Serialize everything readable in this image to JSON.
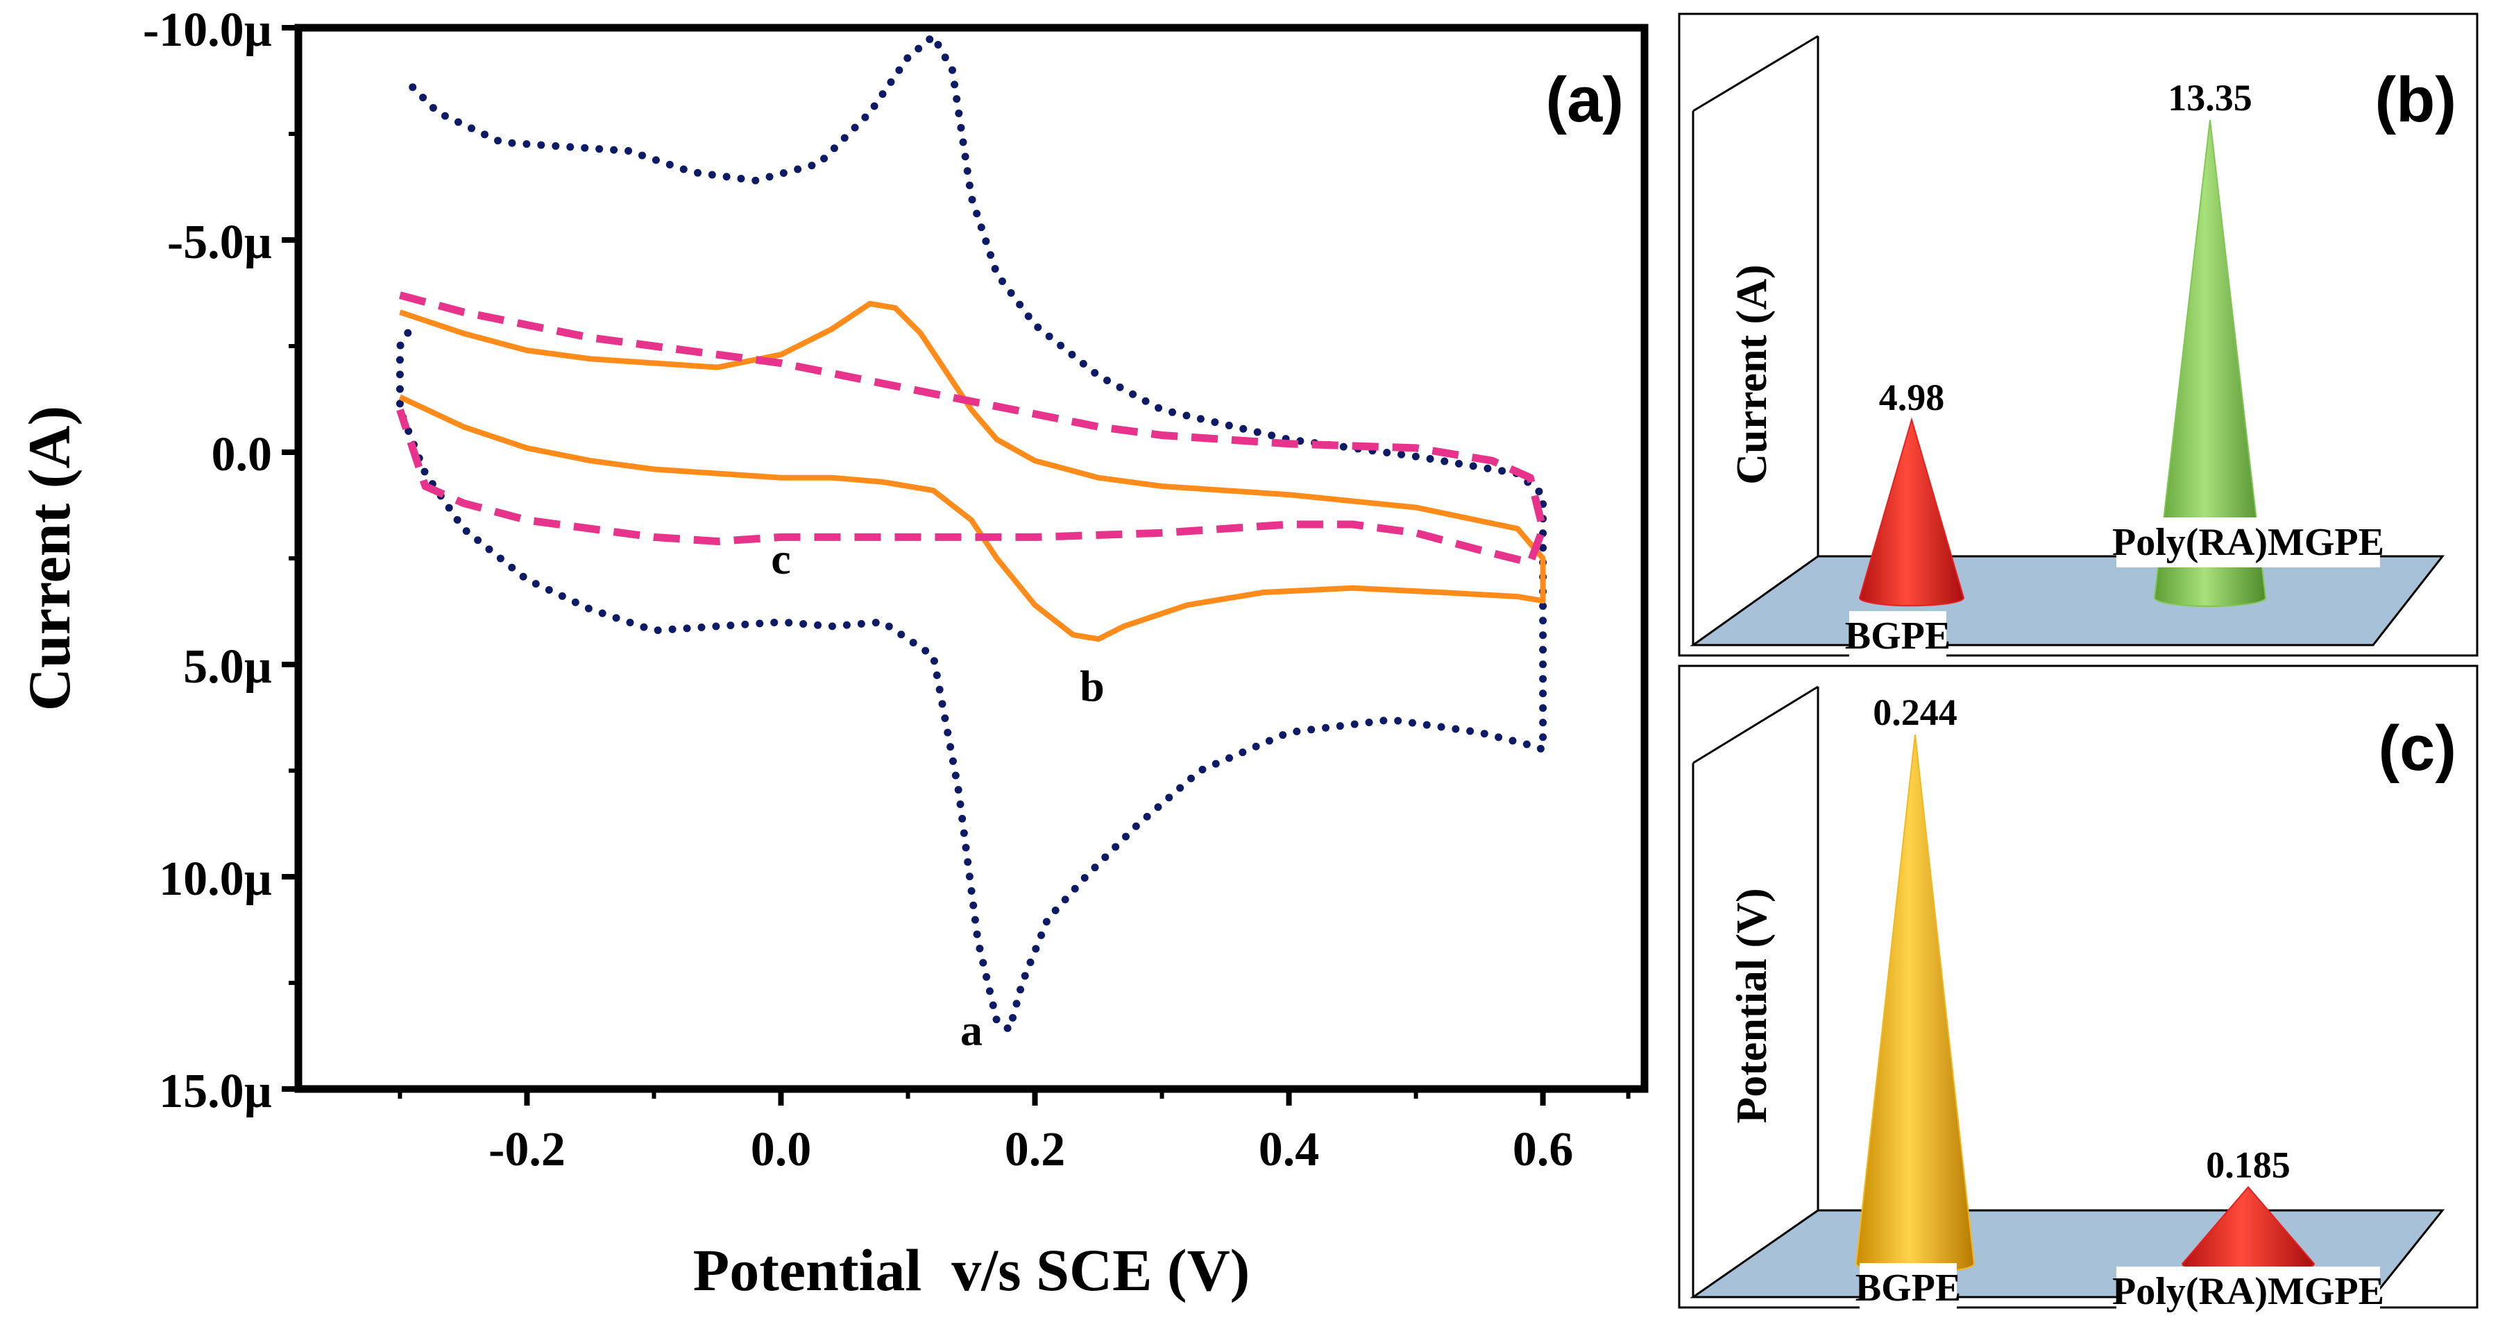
{
  "panel_labels": {
    "a": "(a)",
    "b": "(b)",
    "c": "(c)"
  },
  "colors": {
    "curve_a": "#0d1a66",
    "curve_b": "#ff8c1a",
    "curve_c": "#e8338c",
    "cone_red": "#e82020",
    "cone_green": "#7ec850",
    "cone_gold": "#f2b81e",
    "floor": "#a7c1d9"
  },
  "chart_data": [
    {
      "type": "line",
      "title": "(a)",
      "xlabel": "Potential  v/s SCE (V)",
      "ylabel": "Current (A)",
      "xlim": [
        -0.38,
        0.68
      ],
      "ylim": [
        15.0,
        -10.0
      ],
      "y_inverted": true,
      "x_ticks": [
        -0.2,
        0.0,
        0.2,
        0.4,
        0.6
      ],
      "x_tick_labels": [
        "-0.2",
        "0.0",
        "0.2",
        "0.4",
        "0.6"
      ],
      "y_ticks": [
        -10,
        -5,
        0,
        5,
        10,
        15
      ],
      "y_tick_labels": [
        "-10.0µ",
        "-5.0µ",
        "0.0",
        "5.0µ",
        "10.0µ",
        "15.0µ"
      ],
      "y_unit": "µA",
      "series": [
        {
          "name": "a",
          "style": "dotted",
          "color_key": "curve_a",
          "x": [
            -0.29,
            -0.27,
            -0.22,
            -0.17,
            -0.12,
            -0.07,
            -0.02,
            0.03,
            0.07,
            0.1,
            0.12,
            0.135,
            0.15,
            0.17,
            0.2,
            0.25,
            0.3,
            0.4,
            0.5,
            0.58,
            0.6,
            0.6,
            0.59,
            0.55,
            0.48,
            0.4,
            0.33,
            0.28,
            0.24,
            0.21,
            0.19,
            0.18,
            0.17,
            0.155,
            0.14,
            0.12,
            0.08,
            0.04,
            0.0,
            -0.05,
            -0.1,
            -0.15,
            -0.2,
            -0.25,
            -0.28,
            -0.3,
            -0.3,
            -0.29
          ],
          "y": [
            -8.6,
            -8.0,
            -7.3,
            -7.2,
            -7.1,
            -6.6,
            -6.4,
            -6.8,
            -8.0,
            -9.3,
            -9.8,
            -9.0,
            -6.0,
            -4.2,
            -3.0,
            -1.8,
            -1.0,
            -0.3,
            0.1,
            0.5,
            1.0,
            7.0,
            6.9,
            6.6,
            6.3,
            6.6,
            7.5,
            8.8,
            10.0,
            11.0,
            12.5,
            13.6,
            13.4,
            11.5,
            8.0,
            4.8,
            4.0,
            4.1,
            4.0,
            4.1,
            4.2,
            3.7,
            3.0,
            1.8,
            0.5,
            -1.0,
            -2.5,
            -3.0
          ]
        },
        {
          "name": "b",
          "style": "solid",
          "color_key": "curve_b",
          "x": [
            -0.3,
            -0.25,
            -0.2,
            -0.15,
            -0.1,
            -0.05,
            0.0,
            0.04,
            0.07,
            0.09,
            0.11,
            0.13,
            0.15,
            0.17,
            0.2,
            0.25,
            0.3,
            0.4,
            0.5,
            0.58,
            0.6,
            0.6,
            0.58,
            0.52,
            0.45,
            0.38,
            0.32,
            0.27,
            0.25,
            0.23,
            0.2,
            0.17,
            0.15,
            0.12,
            0.08,
            0.04,
            0.0,
            -0.05,
            -0.1,
            -0.15,
            -0.2,
            -0.25,
            -0.3
          ],
          "y": [
            -3.3,
            -2.8,
            -2.4,
            -2.2,
            -2.1,
            -2.0,
            -2.3,
            -2.9,
            -3.5,
            -3.4,
            -2.8,
            -1.9,
            -1.0,
            -0.3,
            0.2,
            0.6,
            0.8,
            1.0,
            1.3,
            1.8,
            2.5,
            3.5,
            3.4,
            3.3,
            3.2,
            3.3,
            3.6,
            4.1,
            4.4,
            4.3,
            3.6,
            2.5,
            1.6,
            0.9,
            0.7,
            0.6,
            0.6,
            0.5,
            0.4,
            0.2,
            -0.1,
            -0.6,
            -1.3
          ]
        },
        {
          "name": "c",
          "style": "dashed",
          "color_key": "curve_c",
          "x": [
            -0.3,
            -0.25,
            -0.2,
            -0.15,
            -0.1,
            -0.05,
            0.0,
            0.05,
            0.1,
            0.15,
            0.2,
            0.25,
            0.3,
            0.4,
            0.5,
            0.56,
            0.59,
            0.6,
            0.59,
            0.55,
            0.5,
            0.45,
            0.4,
            0.35,
            0.3,
            0.2,
            0.1,
            0.0,
            -0.05,
            -0.1,
            -0.15,
            -0.2,
            -0.25,
            -0.28,
            -0.3
          ],
          "y": [
            -3.7,
            -3.3,
            -3.0,
            -2.7,
            -2.5,
            -2.3,
            -2.1,
            -1.8,
            -1.5,
            -1.2,
            -0.9,
            -0.6,
            -0.4,
            -0.2,
            -0.1,
            0.2,
            0.6,
            1.8,
            2.6,
            2.3,
            1.9,
            1.7,
            1.7,
            1.8,
            1.9,
            2.0,
            2.0,
            2.0,
            2.1,
            2.0,
            1.8,
            1.6,
            1.2,
            0.8,
            -1.0
          ]
        }
      ],
      "curve_labels": [
        {
          "text": "a",
          "x": 0.15,
          "y": 13.6
        },
        {
          "text": "b",
          "x": 0.245,
          "y": 5.5
        },
        {
          "text": "c",
          "x": 0.0,
          "y": 2.5
        }
      ]
    },
    {
      "type": "bar",
      "bar_shape": "3d-cone",
      "title": "(b)",
      "ylabel": "Current (A)",
      "categories": [
        "BGPE",
        "Poly(RA)MGPE"
      ],
      "values": [
        4.98,
        13.35
      ],
      "value_labels": [
        "4.98",
        "13.35"
      ],
      "ylim": [
        0,
        15.5
      ],
      "bar_color_keys": [
        "cone_red",
        "cone_green"
      ]
    },
    {
      "type": "bar",
      "bar_shape": "3d-cone",
      "title": "(c)",
      "ylabel": "Potential (V)",
      "categories": [
        "BGPE",
        "Poly(RA)MGPE"
      ],
      "values": [
        0.244,
        0.185
      ],
      "value_labels": [
        "0.244",
        "0.185"
      ],
      "ylim": [
        0.175,
        0.246
      ],
      "bar_color_keys": [
        "cone_gold",
        "cone_red"
      ]
    }
  ]
}
